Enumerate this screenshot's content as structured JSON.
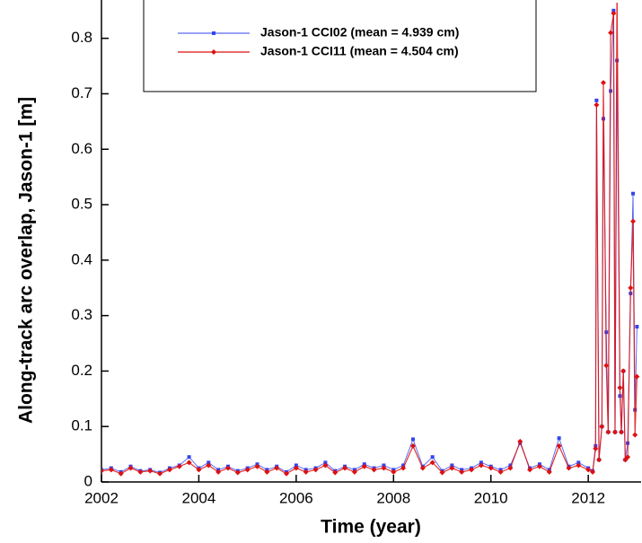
{
  "chart_data": {
    "type": "line",
    "x_label": "Time (year)",
    "y_label": "Along-track arc overlap, Jason-1 [m]",
    "x": [
      2002.0,
      2002.2,
      2002.4,
      2002.6,
      2002.8,
      2003.0,
      2003.2,
      2003.4,
      2003.6,
      2003.8,
      2004.0,
      2004.2,
      2004.4,
      2004.6,
      2004.8,
      2005.0,
      2005.2,
      2005.4,
      2005.6,
      2005.8,
      2006.0,
      2006.2,
      2006.4,
      2006.6,
      2006.8,
      2007.0,
      2007.2,
      2007.4,
      2007.6,
      2007.8,
      2008.0,
      2008.2,
      2008.4,
      2008.6,
      2008.8,
      2009.0,
      2009.2,
      2009.4,
      2009.6,
      2009.8,
      2010.0,
      2010.2,
      2010.4,
      2010.6,
      2010.8,
      2011.0,
      2011.2,
      2011.4,
      2011.6,
      2011.8,
      2012.0,
      2012.09,
      2012.15,
      2012.17,
      2012.22,
      2012.28,
      2012.31,
      2012.37,
      2012.41,
      2012.46,
      2012.52,
      2012.55,
      2012.59,
      2012.65,
      2012.68,
      2012.72,
      2012.76,
      2012.81,
      2012.87,
      2012.92,
      2012.96,
      2013.0
    ],
    "series": [
      {
        "name": "Jason-1 CCI02 (mean = 4.939 cm)",
        "color": "#3344ee",
        "marker": "square",
        "values": [
          0.022,
          0.025,
          0.018,
          0.028,
          0.02,
          0.022,
          0.017,
          0.025,
          0.03,
          0.045,
          0.025,
          0.035,
          0.022,
          0.028,
          0.02,
          0.025,
          0.032,
          0.022,
          0.028,
          0.018,
          0.03,
          0.022,
          0.025,
          0.035,
          0.02,
          0.028,
          0.022,
          0.032,
          0.025,
          0.03,
          0.022,
          0.03,
          0.077,
          0.028,
          0.045,
          0.02,
          0.03,
          0.022,
          0.025,
          0.035,
          0.028,
          0.022,
          0.03,
          0.07,
          0.025,
          0.032,
          0.022,
          0.079,
          0.028,
          0.035,
          0.025,
          0.02,
          0.065,
          0.688,
          0.04,
          0.1,
          0.655,
          0.27,
          0.09,
          0.705,
          0.85,
          0.09,
          0.76,
          0.155,
          0.09,
          0.2,
          0.04,
          0.07,
          0.34,
          0.52,
          0.13,
          0.28
        ]
      },
      {
        "name": "Jason-1 CCI11 (mean = 4.504 cm)",
        "color": "#dd1111",
        "marker": "diamond",
        "values": [
          0.02,
          0.022,
          0.015,
          0.025,
          0.018,
          0.02,
          0.015,
          0.022,
          0.028,
          0.035,
          0.022,
          0.03,
          0.018,
          0.025,
          0.017,
          0.022,
          0.028,
          0.018,
          0.025,
          0.015,
          0.025,
          0.018,
          0.022,
          0.03,
          0.017,
          0.025,
          0.018,
          0.028,
          0.022,
          0.025,
          0.018,
          0.025,
          0.065,
          0.025,
          0.035,
          0.017,
          0.025,
          0.018,
          0.022,
          0.03,
          0.025,
          0.018,
          0.025,
          0.073,
          0.022,
          0.028,
          0.018,
          0.065,
          0.025,
          0.03,
          0.022,
          0.018,
          0.06,
          0.68,
          0.04,
          0.1,
          0.72,
          0.21,
          0.09,
          0.81,
          0.845,
          0.09,
          0.9,
          0.17,
          0.09,
          0.2,
          0.04,
          0.045,
          0.35,
          0.47,
          0.085,
          0.19
        ]
      }
    ],
    "xlim": [
      2002,
      2013.03
    ],
    "ylim": [
      0,
      0.861
    ],
    "xticks": [
      2002,
      2004,
      2006,
      2008,
      2010,
      2012
    ],
    "yticks": [
      0,
      0.1,
      0.2,
      0.3,
      0.4,
      0.5,
      0.6,
      0.7,
      0.8
    ]
  }
}
